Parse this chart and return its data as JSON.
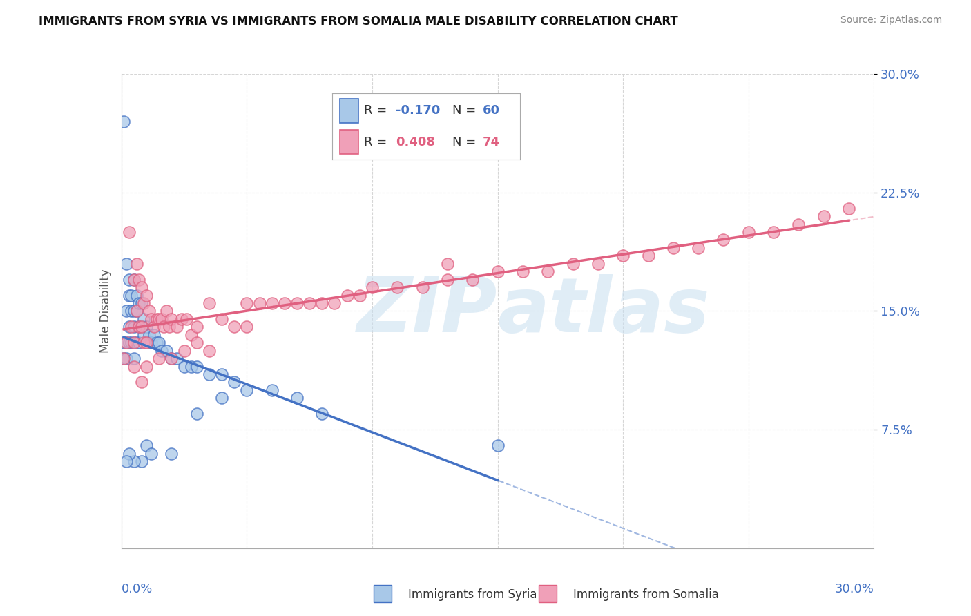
{
  "title": "IMMIGRANTS FROM SYRIA VS IMMIGRANTS FROM SOMALIA MALE DISABILITY CORRELATION CHART",
  "source": "Source: ZipAtlas.com",
  "ylabel": "Male Disability",
  "yticks": [
    "7.5%",
    "15.0%",
    "22.5%",
    "30.0%"
  ],
  "ytick_values": [
    0.075,
    0.15,
    0.225,
    0.3
  ],
  "xlim": [
    0.0,
    0.3
  ],
  "ylim": [
    0.0,
    0.3
  ],
  "legend1_R": "-0.170",
  "legend1_N": "60",
  "legend2_R": "0.408",
  "legend2_N": "74",
  "color_syria": "#a8c8e8",
  "color_somalia": "#f0a0b8",
  "color_syria_line": "#4472c4",
  "color_somalia_line": "#e06080",
  "watermark_color": "#c8dff0",
  "background_color": "#ffffff",
  "syria_x": [
    0.001,
    0.001,
    0.001,
    0.002,
    0.002,
    0.002,
    0.002,
    0.003,
    0.003,
    0.003,
    0.003,
    0.004,
    0.004,
    0.004,
    0.005,
    0.005,
    0.005,
    0.005,
    0.005,
    0.006,
    0.006,
    0.006,
    0.007,
    0.007,
    0.007,
    0.008,
    0.008,
    0.009,
    0.009,
    0.01,
    0.01,
    0.011,
    0.012,
    0.013,
    0.014,
    0.015,
    0.016,
    0.018,
    0.02,
    0.022,
    0.025,
    0.028,
    0.03,
    0.035,
    0.04,
    0.045,
    0.05,
    0.06,
    0.07,
    0.08,
    0.01,
    0.03,
    0.02,
    0.012,
    0.008,
    0.04,
    0.005,
    0.003,
    0.002,
    0.15
  ],
  "syria_y": [
    0.27,
    0.13,
    0.12,
    0.18,
    0.15,
    0.13,
    0.12,
    0.17,
    0.16,
    0.14,
    0.13,
    0.16,
    0.15,
    0.13,
    0.17,
    0.15,
    0.14,
    0.13,
    0.12,
    0.16,
    0.15,
    0.13,
    0.155,
    0.14,
    0.13,
    0.155,
    0.14,
    0.145,
    0.135,
    0.14,
    0.13,
    0.135,
    0.13,
    0.135,
    0.13,
    0.13,
    0.125,
    0.125,
    0.12,
    0.12,
    0.115,
    0.115,
    0.115,
    0.11,
    0.11,
    0.105,
    0.1,
    0.1,
    0.095,
    0.085,
    0.065,
    0.085,
    0.06,
    0.06,
    0.055,
    0.095,
    0.055,
    0.06,
    0.055,
    0.065
  ],
  "somalia_x": [
    0.001,
    0.002,
    0.003,
    0.004,
    0.005,
    0.005,
    0.006,
    0.006,
    0.007,
    0.007,
    0.008,
    0.008,
    0.009,
    0.009,
    0.01,
    0.01,
    0.011,
    0.012,
    0.013,
    0.014,
    0.015,
    0.016,
    0.017,
    0.018,
    0.019,
    0.02,
    0.022,
    0.024,
    0.026,
    0.028,
    0.03,
    0.035,
    0.04,
    0.045,
    0.05,
    0.055,
    0.06,
    0.065,
    0.07,
    0.075,
    0.08,
    0.085,
    0.09,
    0.095,
    0.1,
    0.11,
    0.12,
    0.13,
    0.14,
    0.15,
    0.16,
    0.17,
    0.18,
    0.19,
    0.2,
    0.21,
    0.22,
    0.23,
    0.24,
    0.25,
    0.26,
    0.27,
    0.28,
    0.005,
    0.01,
    0.015,
    0.02,
    0.025,
    0.008,
    0.03,
    0.035,
    0.05,
    0.13,
    0.29
  ],
  "somalia_y": [
    0.12,
    0.13,
    0.2,
    0.14,
    0.17,
    0.13,
    0.18,
    0.15,
    0.17,
    0.14,
    0.165,
    0.14,
    0.155,
    0.13,
    0.16,
    0.13,
    0.15,
    0.145,
    0.14,
    0.145,
    0.145,
    0.145,
    0.14,
    0.15,
    0.14,
    0.145,
    0.14,
    0.145,
    0.145,
    0.135,
    0.14,
    0.155,
    0.145,
    0.14,
    0.155,
    0.155,
    0.155,
    0.155,
    0.155,
    0.155,
    0.155,
    0.155,
    0.16,
    0.16,
    0.165,
    0.165,
    0.165,
    0.17,
    0.17,
    0.175,
    0.175,
    0.175,
    0.18,
    0.18,
    0.185,
    0.185,
    0.19,
    0.19,
    0.195,
    0.2,
    0.2,
    0.205,
    0.21,
    0.115,
    0.115,
    0.12,
    0.12,
    0.125,
    0.105,
    0.13,
    0.125,
    0.14,
    0.18,
    0.215
  ]
}
